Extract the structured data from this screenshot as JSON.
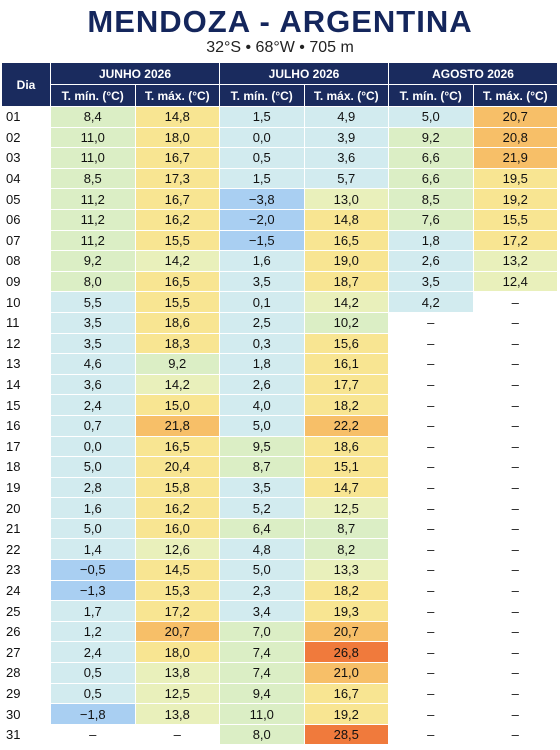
{
  "header": {
    "title": "MENDOZA - ARGENTINA",
    "subtitle": "32°S • 68°W • 705 m"
  },
  "table": {
    "day_header": "Dia",
    "months": [
      "JUNHO 2026",
      "JULHO 2026",
      "AGOSTO 2026"
    ],
    "subheaders": [
      "T. mín. (°C)",
      "T. máx. (°C)",
      "T. mín. (°C)",
      "T. máx. (°C)",
      "T. mín. (°C)",
      "T. máx. (°C)"
    ],
    "rows": [
      [
        "01",
        "8,4",
        "14,8",
        "1,5",
        "4,9",
        "5,0",
        "20,7"
      ],
      [
        "02",
        "11,0",
        "18,0",
        "0,0",
        "3,9",
        "9,2",
        "20,8"
      ],
      [
        "03",
        "11,0",
        "16,7",
        "0,5",
        "3,6",
        "6,6",
        "21,9"
      ],
      [
        "04",
        "8,5",
        "17,3",
        "1,5",
        "5,7",
        "6,6",
        "19,5"
      ],
      [
        "05",
        "11,2",
        "16,7",
        "−3,8",
        "13,0",
        "8,5",
        "19,2"
      ],
      [
        "06",
        "11,2",
        "16,2",
        "−2,0",
        "14,8",
        "7,6",
        "15,5"
      ],
      [
        "07",
        "11,2",
        "15,5",
        "−1,5",
        "16,5",
        "1,8",
        "17,2"
      ],
      [
        "08",
        "9,2",
        "14,2",
        "1,6",
        "19,0",
        "2,6",
        "13,2"
      ],
      [
        "09",
        "8,0",
        "16,5",
        "3,5",
        "18,7",
        "3,5",
        "12,4"
      ],
      [
        "10",
        "5,5",
        "15,5",
        "0,1",
        "14,2",
        "4,2",
        "–"
      ],
      [
        "11",
        "3,5",
        "18,6",
        "2,5",
        "10,2",
        "–",
        "–"
      ],
      [
        "12",
        "3,5",
        "18,3",
        "0,3",
        "15,6",
        "–",
        "–"
      ],
      [
        "13",
        "4,6",
        "9,2",
        "1,8",
        "16,1",
        "–",
        "–"
      ],
      [
        "14",
        "3,6",
        "14,2",
        "2,6",
        "17,7",
        "–",
        "–"
      ],
      [
        "15",
        "2,4",
        "15,0",
        "4,0",
        "18,2",
        "–",
        "–"
      ],
      [
        "16",
        "0,7",
        "21,8",
        "5,0",
        "22,2",
        "–",
        "–"
      ],
      [
        "17",
        "0,0",
        "16,5",
        "9,5",
        "18,6",
        "–",
        "–"
      ],
      [
        "18",
        "5,0",
        "20,4",
        "8,7",
        "15,1",
        "–",
        "–"
      ],
      [
        "19",
        "2,8",
        "15,8",
        "3,5",
        "14,7",
        "–",
        "–"
      ],
      [
        "20",
        "1,6",
        "16,2",
        "5,2",
        "12,5",
        "–",
        "–"
      ],
      [
        "21",
        "5,0",
        "16,0",
        "6,4",
        "8,7",
        "–",
        "–"
      ],
      [
        "22",
        "1,4",
        "12,6",
        "4,8",
        "8,2",
        "–",
        "–"
      ],
      [
        "23",
        "−0,5",
        "14,5",
        "5,0",
        "13,3",
        "–",
        "–"
      ],
      [
        "24",
        "−1,3",
        "15,3",
        "2,3",
        "18,2",
        "–",
        "–"
      ],
      [
        "25",
        "1,7",
        "17,2",
        "3,4",
        "19,3",
        "–",
        "–"
      ],
      [
        "26",
        "1,2",
        "20,7",
        "7,0",
        "20,7",
        "–",
        "–"
      ],
      [
        "27",
        "2,4",
        "18,0",
        "7,4",
        "26,8",
        "–",
        "–"
      ],
      [
        "28",
        "0,5",
        "13,8",
        "7,4",
        "21,0",
        "–",
        "–"
      ],
      [
        "29",
        "0,5",
        "12,5",
        "9,4",
        "16,7",
        "–",
        "–"
      ],
      [
        "30",
        "−1,8",
        "13,8",
        "11,0",
        "19,2",
        "–",
        "–"
      ],
      [
        "31",
        "–",
        "–",
        "8,0",
        "28,5",
        "–",
        "–"
      ]
    ]
  }
}
